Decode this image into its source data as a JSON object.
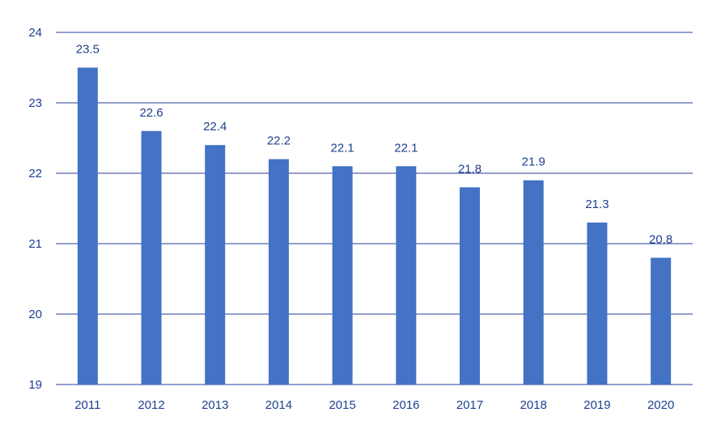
{
  "chart_data": {
    "type": "bar",
    "categories": [
      "2011",
      "2012",
      "2013",
      "2014",
      "2015",
      "2016",
      "2017",
      "2018",
      "2019",
      "2020"
    ],
    "values": [
      23.5,
      22.6,
      22.4,
      22.2,
      22.1,
      22.1,
      21.8,
      21.9,
      21.3,
      20.8
    ],
    "data_labels": [
      "23.5",
      "22.6",
      "22.4",
      "22.2",
      "22.1",
      "22.1",
      "21.8",
      "21.9",
      "21.3",
      "20.8"
    ],
    "ylim": [
      19,
      24
    ],
    "yticks": [
      19,
      20,
      21,
      22,
      23,
      24
    ],
    "ytick_labels": [
      "19",
      "20",
      "21",
      "22",
      "23",
      "24"
    ],
    "grid": true,
    "legend": "none",
    "colors": {
      "bar": "#4472c4",
      "grid": "#2a3f9a",
      "text": "#1f3f8f"
    }
  }
}
